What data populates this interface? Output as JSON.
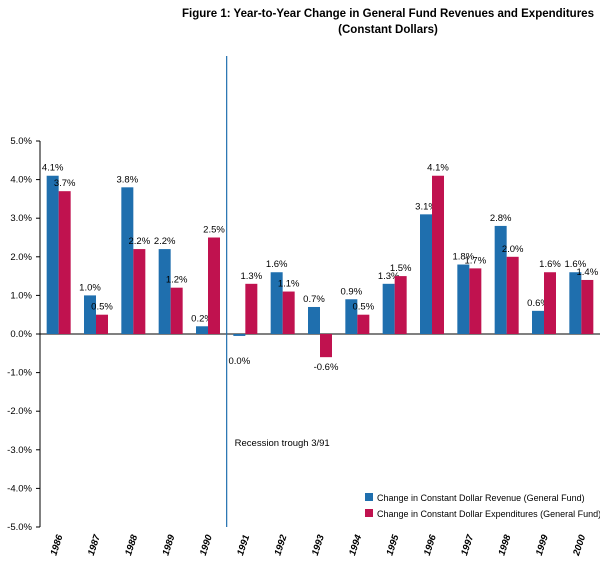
{
  "chart_data": {
    "type": "bar",
    "title": "Figure 1: Year-to-Year Change in General Fund Revenues and Expenditures",
    "subtitle": "(Constant Dollars)",
    "categories": [
      "1986",
      "1987",
      "1988",
      "1989",
      "1990",
      "1991",
      "1992",
      "1993",
      "1994",
      "1995",
      "1996",
      "1997",
      "1998",
      "1999",
      "2000"
    ],
    "series": [
      {
        "name": "Change in Constant Dollar Revenue (General Fund)",
        "color": "#1f6fae",
        "values": [
          4.1,
          1.0,
          3.8,
          2.2,
          0.2,
          -0.05,
          1.6,
          0.7,
          0.9,
          1.3,
          3.1,
          1.8,
          2.8,
          0.6,
          1.6
        ],
        "labels": [
          "4.1%",
          "1.0%",
          "3.8%",
          "2.2%",
          "0.2%",
          "0.0%",
          "1.6%",
          "0.7%",
          "0.9%",
          "1.3%",
          "3.1%",
          "1.8%",
          "2.8%",
          "0.6%",
          "1.6%"
        ]
      },
      {
        "name": "Change in Constant Dollar Expenditures (General Fund)",
        "color": "#c0124f",
        "values": [
          3.7,
          0.5,
          2.2,
          1.2,
          2.5,
          1.3,
          1.1,
          -0.6,
          0.5,
          1.5,
          4.1,
          1.7,
          2.0,
          1.6,
          1.4
        ],
        "labels": [
          "3.7%",
          "0.5%",
          "2.2%",
          "1.2%",
          "2.5%",
          "1.3%",
          "1.1%",
          "-0.6%",
          "0.5%",
          "1.5%",
          "4.1%",
          "1.7%",
          "2.0%",
          "1.6%",
          "1.4%"
        ]
      }
    ],
    "ylim": [
      -5.0,
      5.0
    ],
    "yticks": [
      5.0,
      4.0,
      3.0,
      2.0,
      1.0,
      0.0,
      -1.0,
      -2.0,
      -3.0,
      -4.0,
      -5.0
    ],
    "ytick_labels": [
      "5.0%",
      "4.0%",
      "3.0%",
      "2.0%",
      "1.0%",
      "0.0%",
      "-1.0%",
      "-2.0%",
      "-3.0%",
      "-4.0%",
      "-5.0%"
    ],
    "annotation": {
      "text": "Recession trough 3/91",
      "after_category": "1990"
    },
    "legend_position": "bottom-right",
    "grid": false
  }
}
